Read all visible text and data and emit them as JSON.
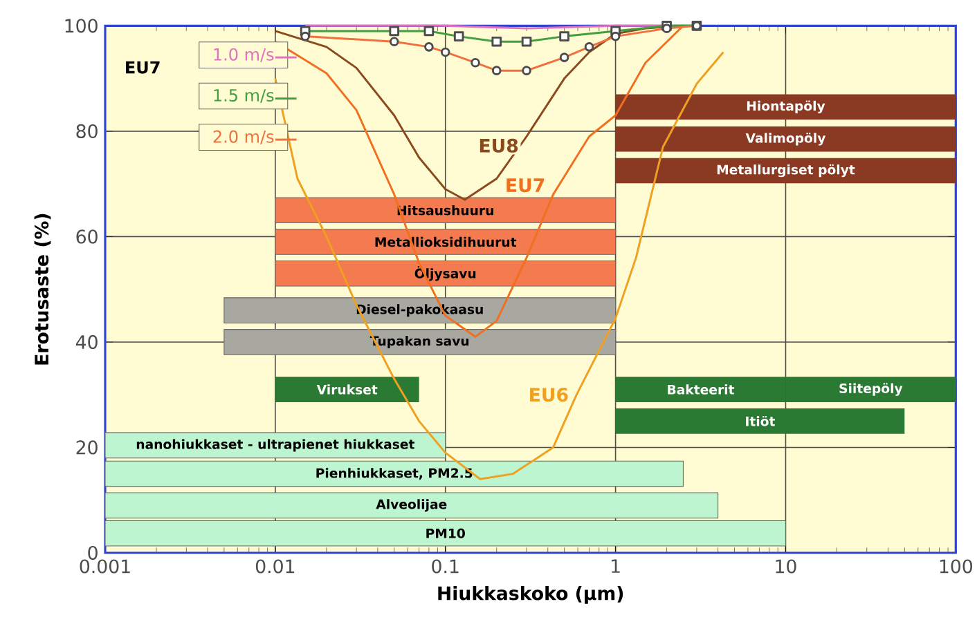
{
  "chart_data": {
    "type": "line",
    "xlabel": "Hiukkaskoko (µm)",
    "ylabel": "Erotusaste (%)",
    "legend_title": "EU7",
    "log": "x",
    "xlim": [
      0.001,
      100
    ],
    "ylim": [
      0,
      100
    ],
    "xticks": [
      0.001,
      0.01,
      0.1,
      1,
      10,
      100
    ],
    "yticks": [
      0,
      20,
      40,
      60,
      80,
      100
    ],
    "grid": true,
    "legend": "top left",
    "series": [
      {
        "name": "EU8",
        "color": "#8b4a1e",
        "marker": "none",
        "x": [
          0.01,
          0.02,
          0.03,
          0.05,
          0.07,
          0.1,
          0.13,
          0.2,
          0.3,
          0.5,
          0.7,
          1,
          1.5,
          2.5
        ],
        "values": [
          99,
          96,
          92,
          83,
          75,
          69,
          67,
          71,
          79,
          90,
          95,
          98.5,
          99.5,
          100
        ]
      },
      {
        "name": "EU7",
        "color": "#f07020",
        "marker": "none",
        "x": [
          0.01,
          0.02,
          0.03,
          0.05,
          0.07,
          0.1,
          0.15,
          0.2,
          0.3,
          0.43,
          0.7,
          1,
          1.5,
          2.5
        ],
        "values": [
          97,
          91,
          84,
          68,
          55,
          45,
          41,
          44,
          56,
          68,
          79,
          83,
          93,
          100
        ]
      },
      {
        "name": "EU6",
        "color": "#f0a020",
        "marker": "none",
        "x": [
          0.01,
          0.0135,
          0.02,
          0.03,
          0.05,
          0.07,
          0.1,
          0.16,
          0.25,
          0.43,
          0.59,
          1,
          1.32,
          1.9,
          3,
          4.3
        ],
        "values": [
          90,
          71,
          60,
          47,
          33,
          25,
          19,
          14,
          15,
          20,
          30,
          44.5,
          56,
          77,
          89,
          95
        ]
      },
      {
        "name": "1.0 m/s",
        "color": "#e070c0",
        "marker": "none",
        "x": [
          0.015,
          0.05,
          0.1,
          0.3,
          1,
          3
        ],
        "values": [
          100,
          100,
          100,
          99.5,
          100,
          100
        ]
      },
      {
        "name": "1.5 m/s",
        "color": "#40a040",
        "marker": "square",
        "x": [
          0.015,
          0.05,
          0.08,
          0.12,
          0.2,
          0.3,
          0.5,
          1,
          2,
          3
        ],
        "values": [
          99,
          99,
          99,
          98,
          97,
          97,
          98,
          99,
          100,
          100
        ]
      },
      {
        "name": "2.0 m/s",
        "color": "#f07040",
        "marker": "circle",
        "x": [
          0.015,
          0.05,
          0.08,
          0.1,
          0.15,
          0.2,
          0.3,
          0.5,
          0.7,
          1,
          2,
          3
        ],
        "values": [
          98,
          97,
          96,
          95,
          93,
          91.5,
          91.5,
          94,
          96,
          98,
          99.5,
          100
        ]
      }
    ],
    "bands": [
      {
        "axis": "x",
        "from": 1,
        "to": 100,
        "label": "Hiontapöly",
        "color": "#8a3a22"
      },
      {
        "axis": "x",
        "from": 1,
        "to": 100,
        "label": "Valimopöly",
        "color": "#8a3a22"
      },
      {
        "axis": "x",
        "from": 1,
        "to": 100,
        "label": "Metallurgiset pölyt",
        "color": "#8a3a22"
      },
      {
        "axis": "x",
        "from": 0.01,
        "to": 1,
        "label": "Hitsaushuuru",
        "color": "#f47a50"
      },
      {
        "axis": "x",
        "from": 0.01,
        "to": 1,
        "label": "Metallioksidihuurut",
        "color": "#f47a50"
      },
      {
        "axis": "x",
        "from": 0.01,
        "to": 1,
        "label": "Öljysavu",
        "color": "#f47a50"
      },
      {
        "axis": "x",
        "from": 0.005,
        "to": 1,
        "label": "Diesel-pakokaasu",
        "color": "#a8a8a0"
      },
      {
        "axis": "x",
        "from": 0.005,
        "to": 1,
        "label": "Tupakan savu",
        "color": "#a8a8a0"
      },
      {
        "axis": "x",
        "from": 0.01,
        "to": 0.07,
        "label": "Virukset",
        "color": "#2a7a34"
      },
      {
        "axis": "x",
        "from": 1,
        "to": 10,
        "label": "Bakteerit",
        "color": "#2a7a34"
      },
      {
        "axis": "x",
        "from": 10,
        "to": 100,
        "label": "Siitepöly",
        "color": "#2a7a34"
      },
      {
        "axis": "x",
        "from": 1,
        "to": 50,
        "label": "Itiöt",
        "color": "#2a7a34"
      },
      {
        "axis": "x",
        "from": 0.001,
        "to": 0.1,
        "label": "nanohiukkaset - ultrapienet hiukkaset",
        "color": "#bdf5d0"
      },
      {
        "axis": "x",
        "from": 0.001,
        "to": 2.5,
        "label": "Pienhiukkaset, PM2.5",
        "color": "#bdf5d0"
      },
      {
        "axis": "x",
        "from": 0.001,
        "to": 4,
        "label": "Alveolijae",
        "color": "#bdf5d0"
      },
      {
        "axis": "x",
        "from": 0.001,
        "to": 10,
        "label": "PM10",
        "color": "#bdf5d0"
      }
    ]
  }
}
